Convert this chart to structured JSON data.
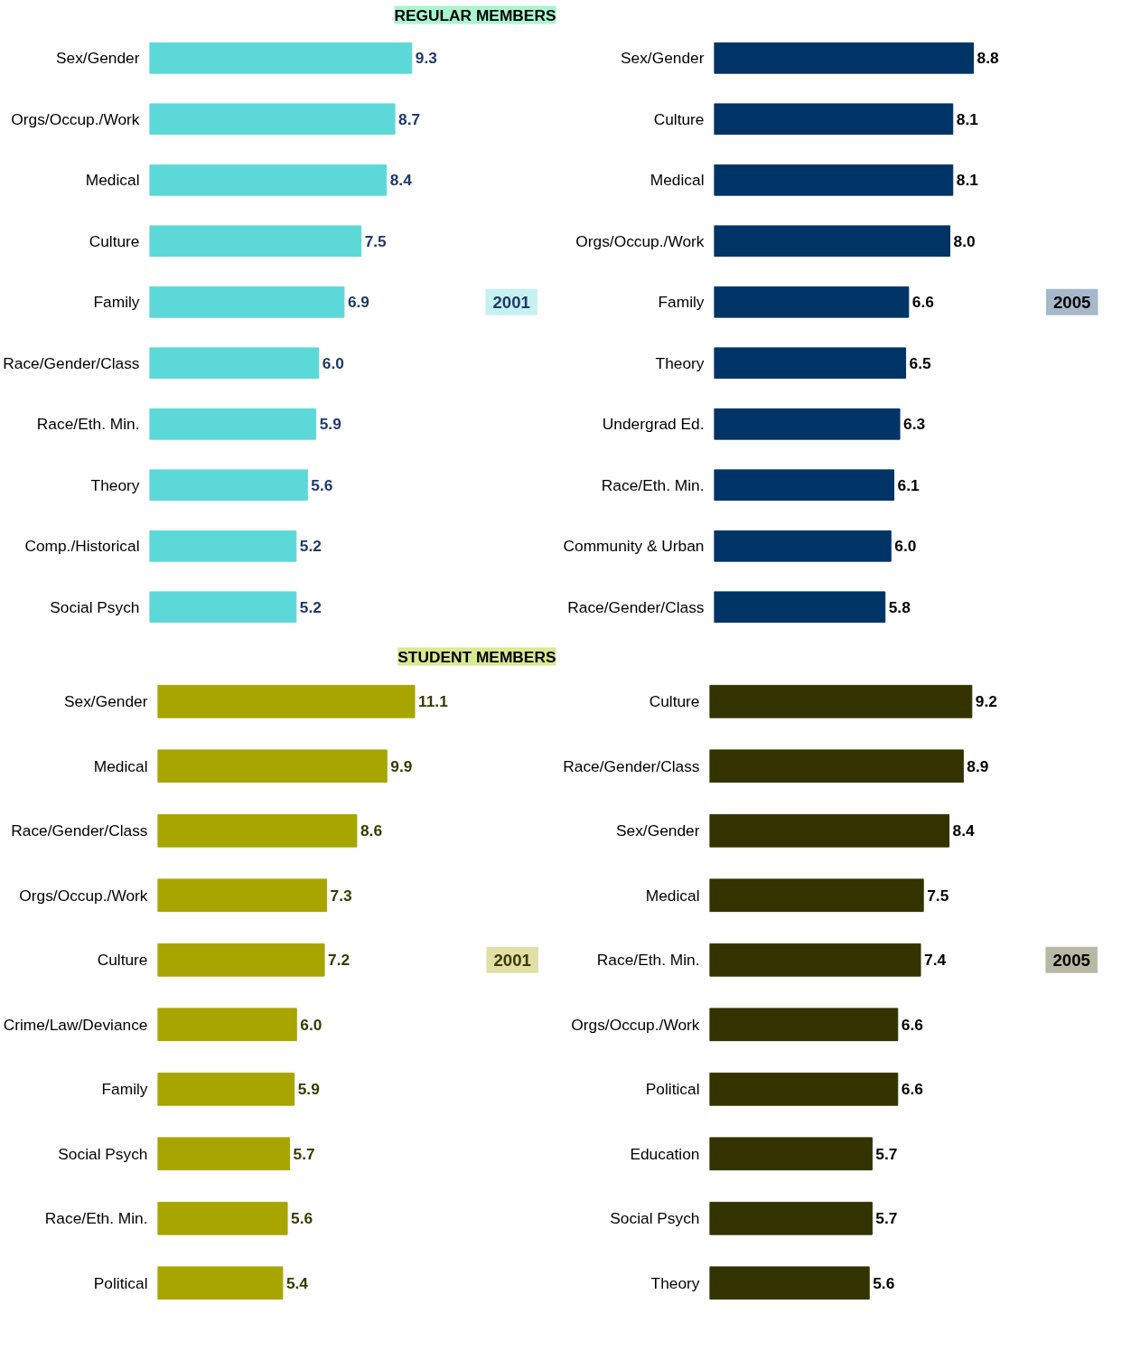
{
  "chart_data": [
    {
      "type": "bar",
      "orientation": "horizontal",
      "title": "REGULAR MEMBERS",
      "annotations": [
        "2001"
      ],
      "categories": [
        "Sex/Gender",
        "Orgs/Occup./Work",
        "Medical",
        "Culture",
        "Family",
        "Race/Gender/Class",
        "Race/Eth. Min.",
        "Theory",
        "Comp./Historical",
        "Social Psych"
      ],
      "values": [
        9.3,
        8.7,
        8.4,
        7.5,
        6.9,
        6.0,
        5.9,
        5.6,
        5.2,
        5.2
      ],
      "value_labels": [
        "9.3",
        "8.7",
        "8.4",
        "7.5",
        "6.9",
        "6.0",
        "5.9",
        "5.6",
        "5.2",
        "5.2"
      ],
      "color": "#5dd8d8",
      "tick_labels": "y",
      "grid": false
    },
    {
      "type": "bar",
      "orientation": "horizontal",
      "annotations": [
        "2005"
      ],
      "categories": [
        "Sex/Gender",
        "Culture",
        "Medical",
        "Orgs/Occup./Work",
        "Family",
        "Theory",
        "Undergrad Ed.",
        "Race/Eth. Min.",
        "Community & Urban",
        "Race/Gender/Class"
      ],
      "values": [
        8.8,
        8.1,
        8.1,
        8.0,
        6.6,
        6.5,
        6.3,
        6.1,
        6.0,
        5.8
      ],
      "value_labels": [
        "8.8",
        "8.1",
        "8.1",
        "8.0",
        "6.6",
        "6.5",
        "6.3",
        "6.1",
        "6.0",
        "5.8"
      ],
      "color": "#003366",
      "tick_labels": "y",
      "grid": false
    },
    {
      "type": "bar",
      "orientation": "horizontal",
      "title": "STUDENT MEMBERS",
      "annotations": [
        "2001"
      ],
      "categories": [
        "Sex/Gender",
        "Medical",
        "Race/Gender/Class",
        "Orgs/Occup./Work",
        "Culture",
        "Crime/Law/Deviance",
        "Family",
        "Social Psych",
        "Race/Eth. Min.",
        "Political"
      ],
      "values": [
        11.1,
        9.9,
        8.6,
        7.3,
        7.2,
        6.0,
        5.9,
        5.7,
        5.6,
        5.4
      ],
      "value_labels": [
        "11.1",
        "9.9",
        "8.6",
        "7.3",
        "7.2",
        "6.0",
        "5.9",
        "5.7",
        "5.6",
        "5.4"
      ],
      "color": "#a8a400",
      "tick_labels": "y",
      "grid": false
    },
    {
      "type": "bar",
      "orientation": "horizontal",
      "annotations": [
        "2005"
      ],
      "categories": [
        "Culture",
        "Race/Gender/Class",
        "Sex/Gender",
        "Medical",
        "Race/Eth. Min.",
        "Orgs/Occup./Work",
        "Political",
        "Education",
        "Social Psych",
        "Theory"
      ],
      "values": [
        9.2,
        8.9,
        8.4,
        7.5,
        7.4,
        6.6,
        6.6,
        5.7,
        5.7,
        5.6
      ],
      "value_labels": [
        "9.2",
        "8.9",
        "8.4",
        "7.5",
        "7.4",
        "6.6",
        "6.6",
        "5.7",
        "5.7",
        "5.6"
      ],
      "color": "#333300",
      "tick_labels": "y",
      "grid": false
    }
  ]
}
